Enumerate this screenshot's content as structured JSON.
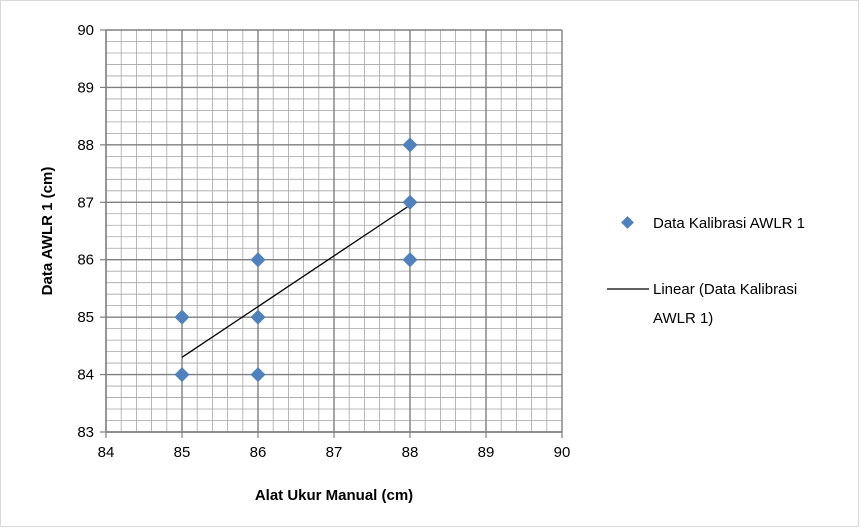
{
  "chart_data": {
    "type": "scatter",
    "title": "",
    "xlabel": "Alat Ukur Manual (cm)",
    "ylabel": "Data AWLR 1 (cm)",
    "xlim": [
      84,
      90
    ],
    "ylim": [
      83,
      90
    ],
    "xticks": [
      "84",
      "85",
      "86",
      "87",
      "88",
      "89",
      "90"
    ],
    "yticks": [
      "83",
      "84",
      "85",
      "86",
      "87",
      "88",
      "89",
      "90"
    ],
    "grid": true,
    "legend_position": "right",
    "series": [
      {
        "name": "Data Kalibrasi AWLR 1",
        "marker": "diamond",
        "color": "#4f81bd",
        "points": [
          {
            "x": 85,
            "y": 85
          },
          {
            "x": 85,
            "y": 84
          },
          {
            "x": 86,
            "y": 86
          },
          {
            "x": 86,
            "y": 85
          },
          {
            "x": 86,
            "y": 84
          },
          {
            "x": 88,
            "y": 88
          },
          {
            "x": 88,
            "y": 87
          },
          {
            "x": 88,
            "y": 86
          }
        ]
      }
    ],
    "trendline": {
      "name_lines": [
        "Linear (Data Kalibrasi",
        "AWLR 1)"
      ],
      "color": "#000000",
      "points": [
        {
          "x": 85,
          "y": 84.3
        },
        {
          "x": 88,
          "y": 86.95
        }
      ]
    }
  }
}
